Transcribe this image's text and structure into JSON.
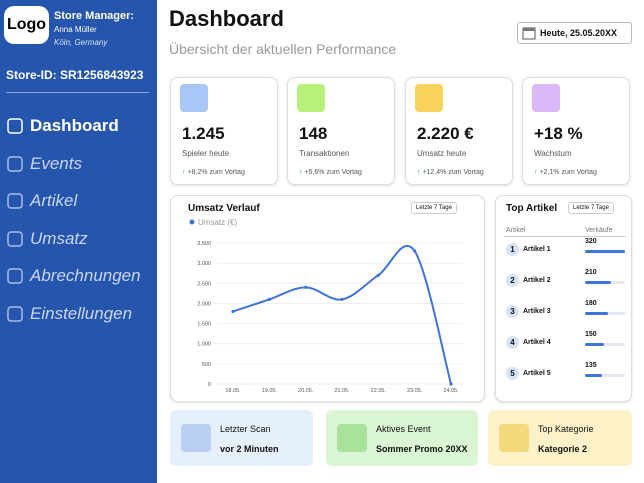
{
  "sidebar": {
    "logo": "Logo",
    "manager_title": "Store Manager:",
    "manager_name": "Anna Müller",
    "location": "Köln, Germany",
    "store_id": "Store-ID: SR1256843923",
    "nav": [
      "Dashboard",
      "Events",
      "Artikel",
      "Umsatz",
      "Abrechnungen",
      "Einstellungen"
    ]
  },
  "header": {
    "title": "Dashboard",
    "subtitle": "Übersicht der aktuellen Performance",
    "date": "Heute, 25.05.20XX"
  },
  "kpis": [
    {
      "value": "1.245",
      "label": "Spieler heute",
      "change": "+8,2% zum Vortag"
    },
    {
      "value": "148",
      "label": "Transaktionen",
      "change": "+5,6% zum Vortag"
    },
    {
      "value": "2.220 €",
      "label": "Umsatz heute",
      "change": "+12,4% zum Vortag"
    },
    {
      "value": "+18 %",
      "label": "Wachstum",
      "change": "+2,1% zum Vortag"
    }
  ],
  "chart": {
    "type": "line",
    "title": "Umsatz Verlauf",
    "filter": "Letzte 7 Tage",
    "categories": [
      "18.05.",
      "19.05.",
      "20.05.",
      "21.05.",
      "22.05.",
      "23.05.",
      "24.05."
    ],
    "series": [
      {
        "name": "Umsatz (€)",
        "color": "#3f74dc",
        "values": [
          1800,
          2100,
          2400,
          2100,
          2700,
          3300,
          0
        ]
      }
    ],
    "ylim": [
      0,
      3500
    ],
    "yticks": [
      0,
      500,
      {
        "value": 1000,
        "label": "1.000"
      },
      {
        "value": 1500,
        "label": "1.500"
      },
      {
        "value": 2000,
        "label": "2.000"
      },
      {
        "value": 2500,
        "label": "2.500"
      },
      {
        "value": 3000,
        "label": "3.000"
      },
      {
        "value": 3500,
        "label": "3.500"
      }
    ],
    "grid": true
  },
  "top_articles": {
    "title": "Top Artikel",
    "filter": "Letzte 7 Tage",
    "columns": [
      "Artikel",
      "Verkäufe"
    ],
    "rows": [
      {
        "rank": 1,
        "name": "Artikel 1",
        "sales": 320
      },
      {
        "rank": 2,
        "name": "Artikel 2",
        "sales": 210
      },
      {
        "rank": 3,
        "name": "Artikel 3",
        "sales": 180
      },
      {
        "rank": 4,
        "name": "Artikel 4",
        "sales": 150
      },
      {
        "rank": 5,
        "name": "Artikel 5",
        "sales": 135
      }
    ]
  },
  "info_cards": [
    {
      "title": "Letzter Scan",
      "value": "vor 2 Minuten"
    },
    {
      "title": "Aktives Event",
      "value": "Sommer Promo 20XX"
    },
    {
      "title": "Top Kategorie",
      "value": "Kategorie 2"
    }
  ]
}
